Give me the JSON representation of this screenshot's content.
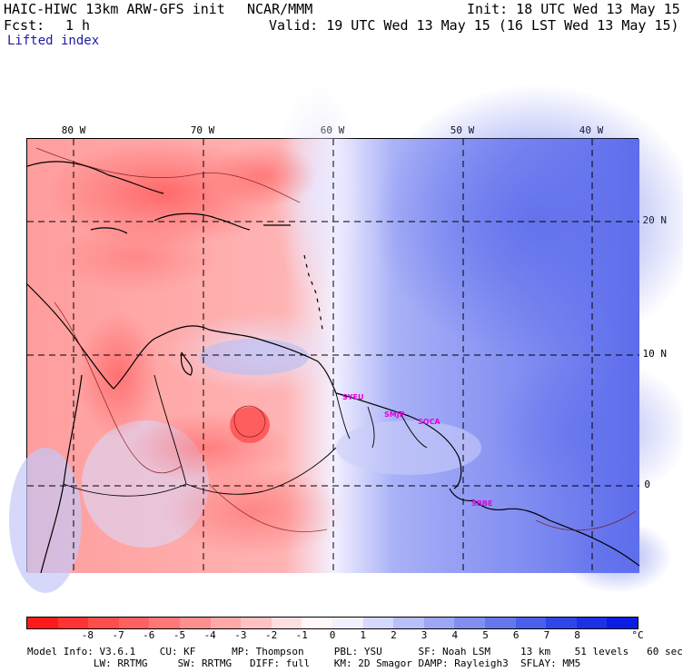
{
  "header": {
    "model_title": "HAIC-HIWC 13km ARW-GFS init",
    "org": "NCAR/MMM",
    "init": "Init: 18 UTC Wed 13 May 15",
    "fcst_label": "Fcst:",
    "fcst_value": "1 h",
    "valid": "Valid: 19 UTC Wed 13 May 15 (16 LST Wed 13 May 15)",
    "field": "Lifted index"
  },
  "map": {
    "lon_labels": [
      "80 W",
      "70 W",
      "60 W",
      "50 W",
      "40 W"
    ],
    "lat_labels": [
      "20 N",
      "10 N",
      "0"
    ],
    "sites": [
      "SYEU",
      "SMJP",
      "SOCA",
      "SBBE"
    ]
  },
  "colorbar": {
    "unit": "°C",
    "tick_labels": [
      "-8",
      "-7",
      "-6",
      "-5",
      "-4",
      "-3",
      "-2",
      "-1",
      "0",
      "1",
      "2",
      "3",
      "4",
      "5",
      "6",
      "7",
      "8"
    ],
    "colors": [
      "#ff1a1a",
      "#ff3333",
      "#ff4d4d",
      "#ff6161",
      "#ff7777",
      "#ff8f8f",
      "#ffa8a8",
      "#ffc1c1",
      "#ffdede",
      "#fff6f6",
      "#f0f0ff",
      "#d5d8ff",
      "#b9bff8",
      "#9ea7f5",
      "#828ef0",
      "#6677ec",
      "#4a5fea",
      "#2f47e8",
      "#1a31e6",
      "#0a1de3"
    ]
  },
  "footer": {
    "line1": "Model Info: V3.6.1    CU: KF      MP: Thompson     PBL: YSU      SF: Noah LSM     13 km    51 levels   60 sec",
    "line2": "           LW: RRTMG     SW: RRTMG   DIFF: full    KM: 2D Smagor DAMP: Rayleigh3  SFLAY: MM5"
  }
}
